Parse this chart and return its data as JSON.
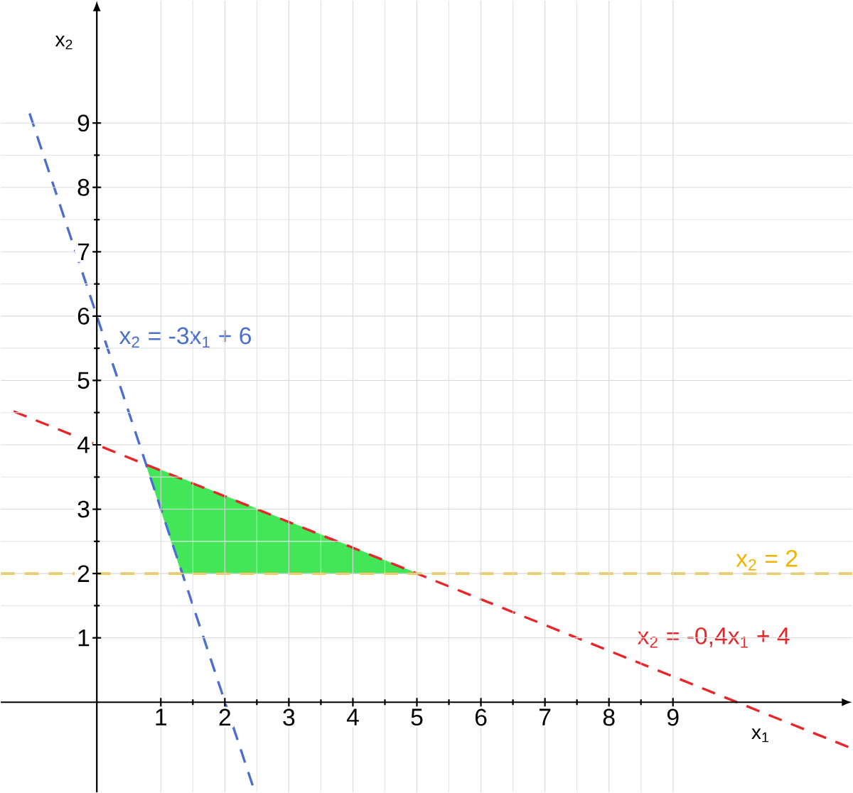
{
  "chart_data": {
    "type": "line",
    "xlabel": "x$_{1}$",
    "ylabel": "x$_{2}$",
    "xlim": [
      -1.5,
      11.8
    ],
    "ylim": [
      -1.4,
      10.9
    ],
    "xticks": [
      1,
      2,
      3,
      4,
      5,
      6,
      7,
      8,
      9
    ],
    "yticks": [
      1,
      2,
      3,
      4,
      5,
      6,
      7,
      8,
      9
    ],
    "grid": true,
    "line_style": "dashed",
    "marker": "none",
    "series": [
      {
        "type": "area",
        "color": "#44e659",
        "x": [
          0.77,
          5,
          1.33
        ],
        "values": [
          3.7,
          2,
          2
        ]
      },
      {
        "name": "x$_{2}$ = -3x$_{1}$ + 6",
        "color": "#4a6fd0",
        "x": [
          -1.05,
          2.47
        ],
        "values": [
          9.15,
          -1.4
        ]
      },
      {
        "name": "x$_{2}$ = -0,4x$_{1}$ + 4",
        "color": "#e8262a",
        "x": [
          -1.3,
          11.8
        ],
        "values": [
          4.52,
          -0.72
        ]
      },
      {
        "name": "x$_{2}$ = 2",
        "color": "#f0b400",
        "x": [
          -1.5,
          11.8
        ],
        "values": [
          2,
          2
        ]
      }
    ]
  }
}
